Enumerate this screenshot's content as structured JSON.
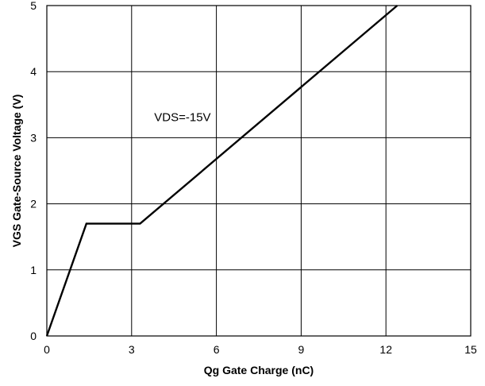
{
  "chart_data": {
    "type": "line",
    "xlabel": "Qg Gate Charge (nC)",
    "ylabel": "VGS Gate-Source Voltage (V)",
    "xlim": [
      0,
      15
    ],
    "ylim": [
      0,
      5
    ],
    "x_ticks": [
      0,
      3,
      6,
      9,
      12,
      15
    ],
    "y_ticks": [
      0,
      1,
      2,
      3,
      4,
      5
    ],
    "grid": true,
    "series": [
      {
        "x": [
          0,
          1.4,
          3.3,
          12.4
        ],
        "y": [
          0,
          1.7,
          1.7,
          5.0
        ]
      }
    ],
    "annotations": [
      {
        "text": "VDS=-15V",
        "x": 3.8,
        "y": 3.25
      }
    ],
    "colors": {
      "line": "#000000",
      "grid": "#000000",
      "frame": "#000000"
    }
  }
}
